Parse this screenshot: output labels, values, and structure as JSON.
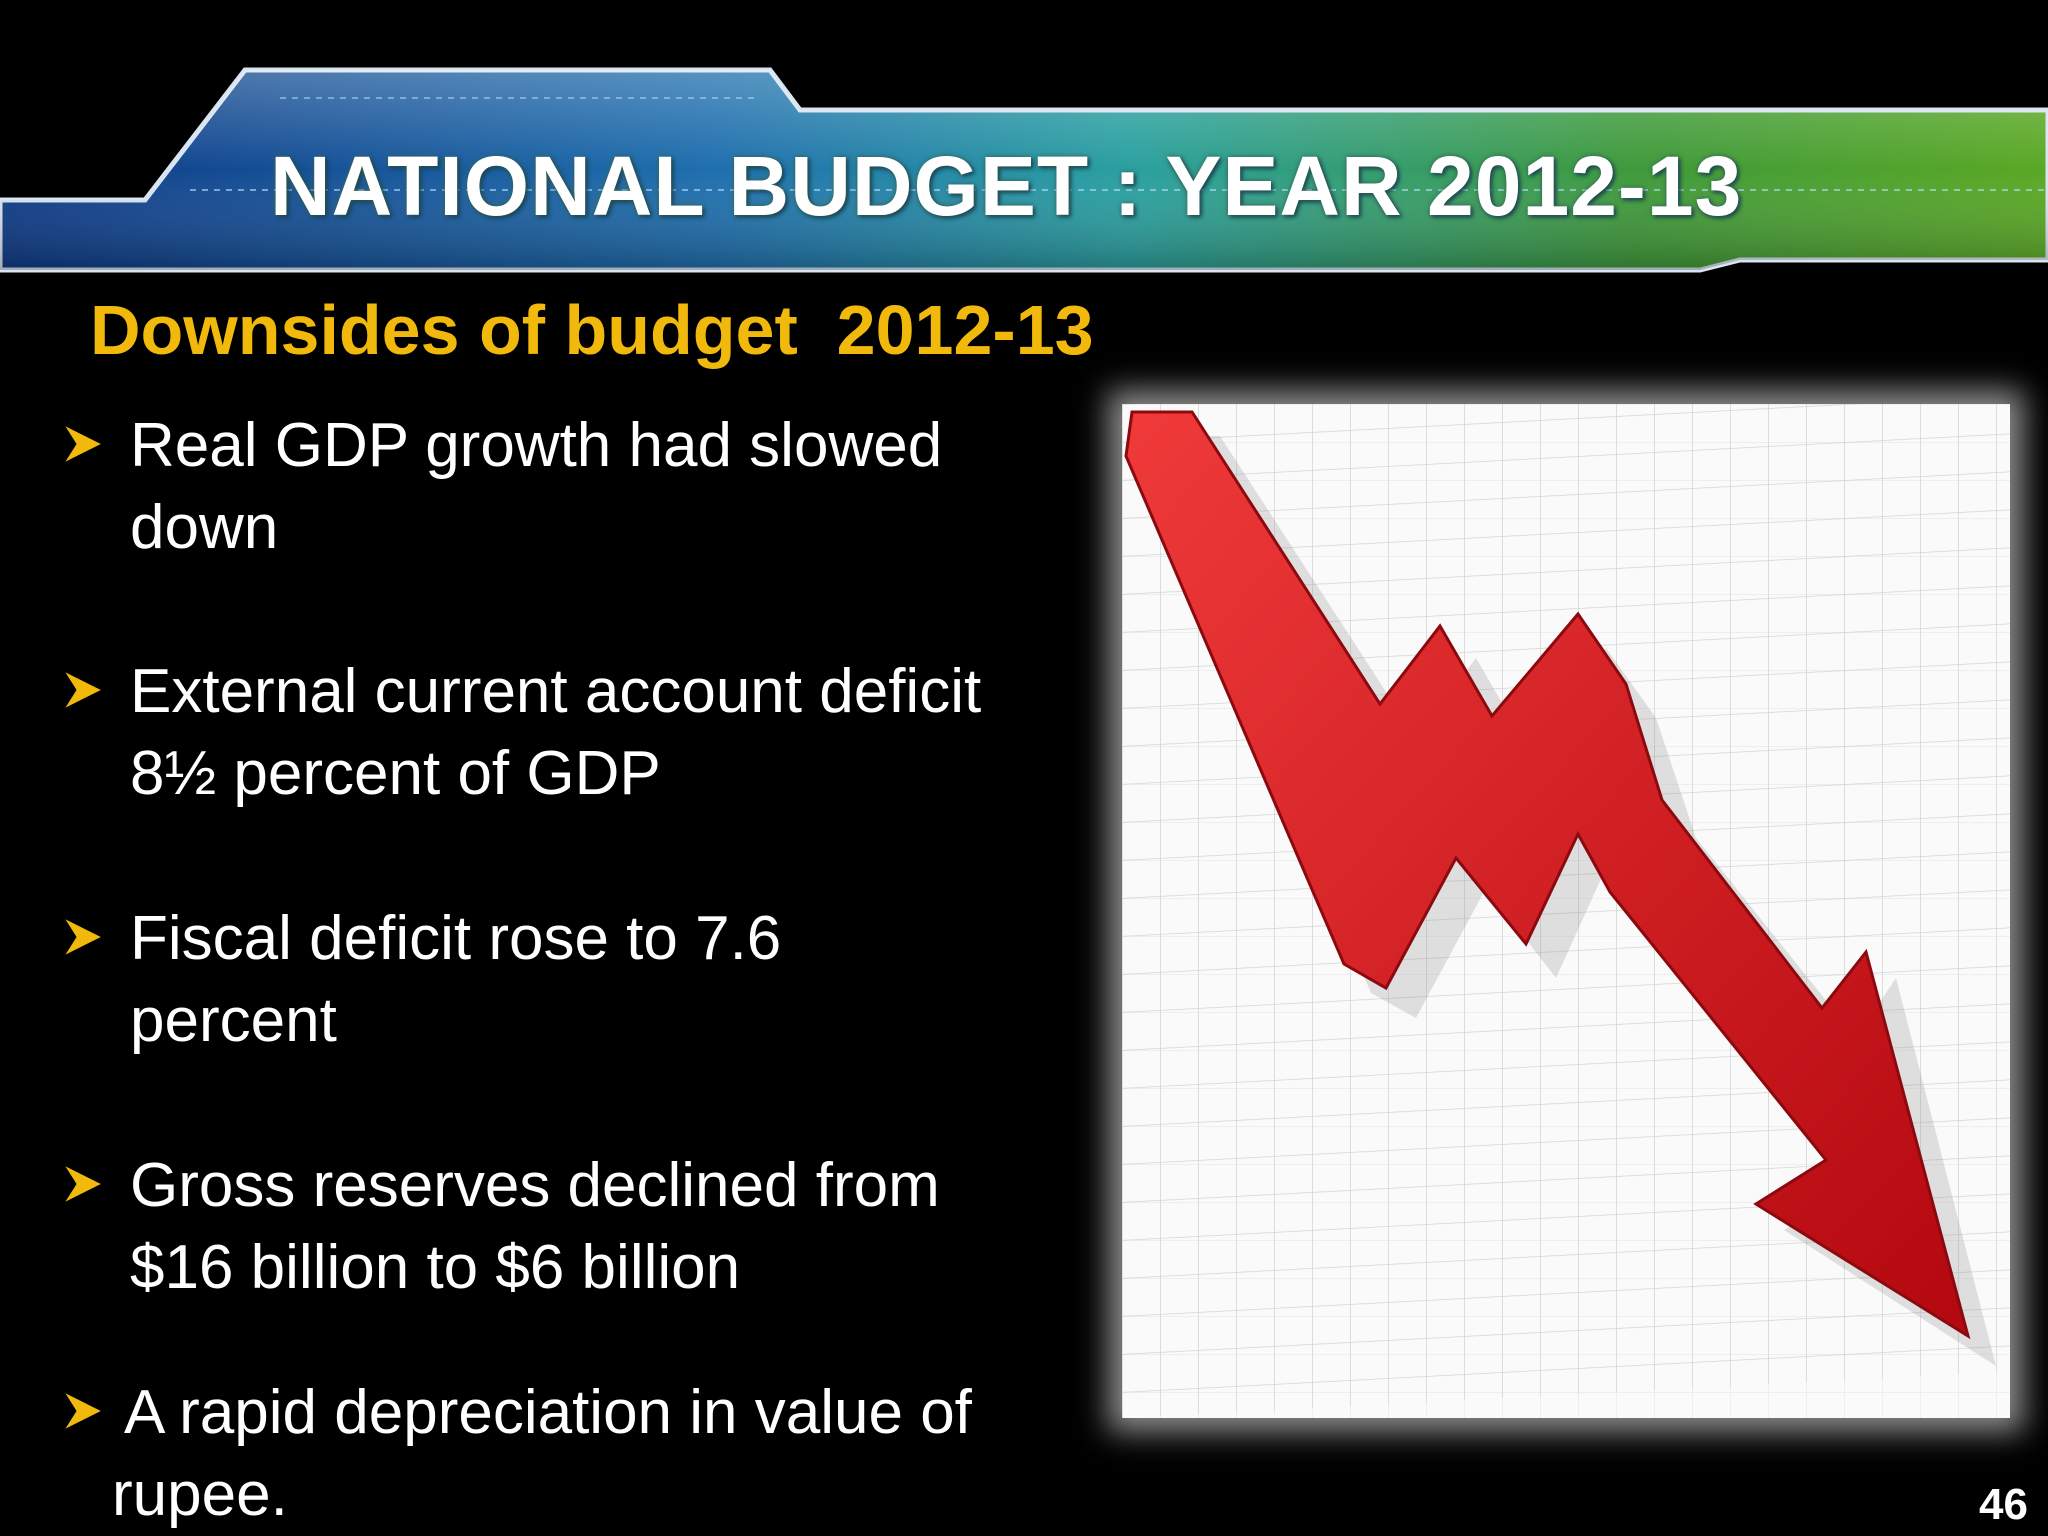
{
  "slide": {
    "title": "NATIONAL BUDGET : YEAR 2012-13",
    "subtitle": "Downsides of budget  2012-13",
    "bullets": [
      {
        "lines": [
          "Real GDP growth had slowed",
          "down"
        ]
      },
      {
        "lines": [
          "External current account deficit",
          "8½ percent of GDP"
        ]
      },
      {
        "lines": [
          "Fiscal deficit rose to 7.6",
          "percent"
        ]
      },
      {
        "lines": [
          "Gross reserves declined from",
          "$16 billion to $6 billion"
        ]
      },
      {
        "lines": [
          "A rapid depreciation in value of",
          "rupee."
        ]
      }
    ],
    "page_number": "46"
  },
  "image": {
    "description_icon": "declining-trend-arrow-icon"
  },
  "colors": {
    "background": "#000000",
    "subtitle": "#f2b90d",
    "bullet_marker": "#f2b90d",
    "arrow": "#d9141b",
    "banner_blue": "#1a4f9c",
    "banner_green": "#4f9a2a"
  }
}
